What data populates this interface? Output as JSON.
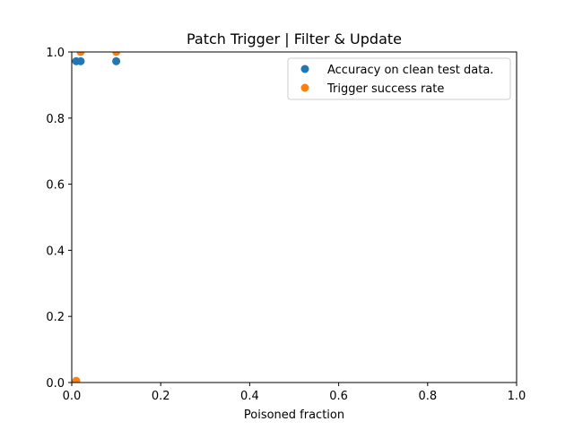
{
  "chart_data": {
    "type": "scatter",
    "title": "Patch Trigger | Filter & Update",
    "xlabel": "Poisoned fraction",
    "ylabel": "",
    "xlim": [
      0,
      1
    ],
    "ylim": [
      0,
      1
    ],
    "xticks": [
      "0.0",
      "0.2",
      "0.4",
      "0.6",
      "0.8",
      "1.0"
    ],
    "yticks": [
      "0.0",
      "0.2",
      "0.4",
      "0.6",
      "0.8",
      "1.0"
    ],
    "grid": false,
    "legend_position": "top-right",
    "series": [
      {
        "name": "Accuracy on clean test data.",
        "color": "#1f77b4",
        "points": [
          {
            "x": 0.01,
            "y": 0.972
          },
          {
            "x": 0.02,
            "y": 0.972
          },
          {
            "x": 0.1,
            "y": 0.972
          }
        ]
      },
      {
        "name": "Trigger success rate",
        "color": "#ff7f0e",
        "points": [
          {
            "x": 0.01,
            "y": 0.005
          },
          {
            "x": 0.02,
            "y": 1.0
          },
          {
            "x": 0.1,
            "y": 1.0
          }
        ]
      }
    ]
  }
}
